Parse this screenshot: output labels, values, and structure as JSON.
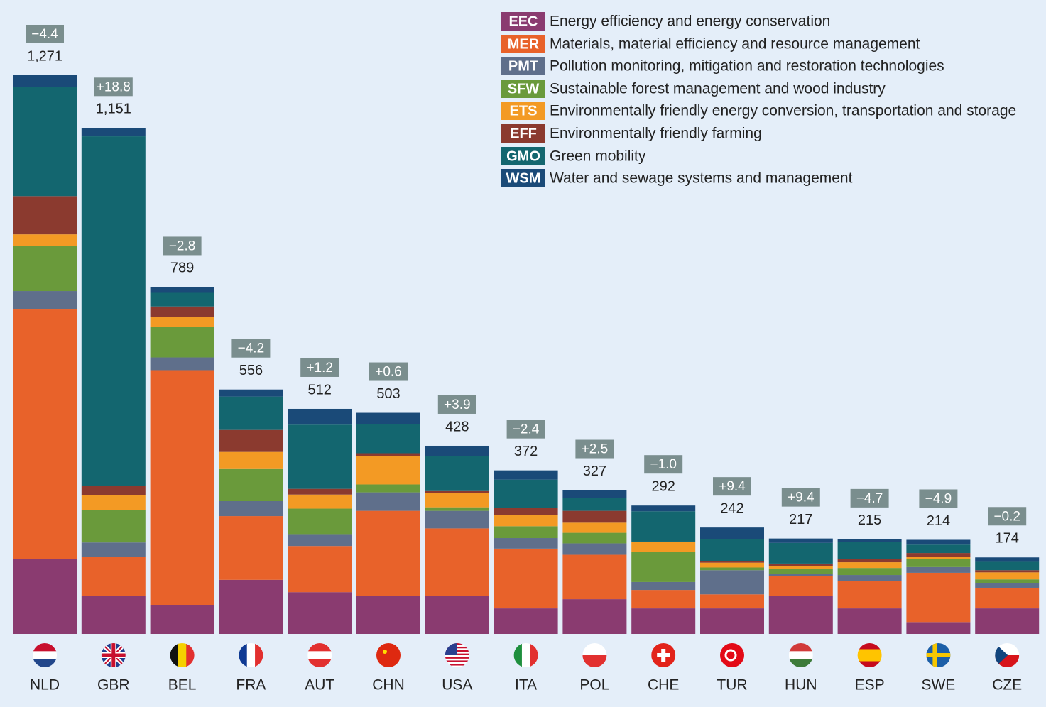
{
  "chart_data": {
    "type": "stacked_bar",
    "categories": [
      "NLD",
      "GBR",
      "BEL",
      "FRA",
      "AUT",
      "CHN",
      "USA",
      "ITA",
      "POL",
      "CHE",
      "TUR",
      "HUN",
      "ESP",
      "SWE",
      "CZE"
    ],
    "totals": [
      {
        "value": 1271,
        "label": "1,271"
      },
      {
        "value": 1151,
        "label": "1,151"
      },
      789,
      556,
      512,
      503,
      428,
      372,
      327,
      292,
      242,
      217,
      215,
      214,
      174
    ],
    "changes": [
      {
        "value": -4.4,
        "label": "−4.4"
      },
      {
        "value": 18.8,
        "label": "+18.8"
      },
      {
        "value": -2.8,
        "label": "−2.8"
      },
      {
        "value": -4.2,
        "label": "−4.2"
      },
      {
        "value": 1.2,
        "label": "+1.2"
      },
      {
        "value": 0.6,
        "label": "+0.6"
      },
      {
        "value": 3.9,
        "label": "+3.9"
      },
      {
        "value": -2.4,
        "label": "−2.4"
      },
      {
        "value": 2.5,
        "label": "+2.5"
      },
      {
        "value": -1.0,
        "label": "−1.0"
      },
      {
        "value": 9.4,
        "label": "+9.4"
      },
      {
        "value": 9.4,
        "label": "+9.4"
      },
      {
        "value": -4.7,
        "label": "−4.7"
      },
      {
        "value": -4.9,
        "label": "−4.9"
      },
      {
        "value": -0.2,
        "label": "−0.2"
      }
    ],
    "series": [
      {
        "code": "EEC",
        "name": "Energy efficiency and energy conservation",
        "color": "#8a3b70",
        "values": [
          170,
          87,
          66,
          123,
          95,
          87,
          87,
          58,
          79,
          58,
          58,
          87,
          58,
          27,
          58
        ]
      },
      {
        "code": "MER",
        "name": "Materials, material efficiency and resource management",
        "color": "#e8622a",
        "values": [
          568,
          89,
          534,
          145,
          105,
          193,
          153,
          136,
          101,
          42,
          32,
          44,
          63,
          112,
          47
        ]
      },
      {
        "code": "PMT",
        "name": "Pollution monitoring, mitigation and restoration technologies",
        "color": "#5f6f8b",
        "values": [
          42,
          32,
          29,
          34,
          27,
          42,
          40,
          24,
          26,
          18,
          55,
          6,
          13,
          13,
          11
        ]
      },
      {
        "code": "SFW",
        "name": "Sustainable forest management and wood industry",
        "color": "#6a9a3b",
        "values": [
          102,
          74,
          69,
          73,
          58,
          18,
          8,
          27,
          24,
          69,
          6,
          10,
          16,
          18,
          8
        ]
      },
      {
        "code": "ETS",
        "name": "Environmentally friendly energy conversion, transportation and storage",
        "color": "#f39a24",
        "values": [
          27,
          34,
          23,
          39,
          32,
          65,
          32,
          26,
          23,
          23,
          11,
          8,
          13,
          6,
          16
        ]
      },
      {
        "code": "EFF",
        "name": "Environmentally friendly farming",
        "color": "#8b3a2f",
        "values": [
          87,
          21,
          24,
          50,
          13,
          6,
          5,
          15,
          27,
          0,
          3,
          5,
          8,
          8,
          5
        ]
      },
      {
        "code": "GMO",
        "name": "Green mobility",
        "color": "#13666f",
        "values": [
          249,
          795,
          31,
          76,
          146,
          66,
          79,
          65,
          29,
          69,
          50,
          47,
          38,
          19,
          19
        ]
      },
      {
        "code": "WSM",
        "name": "Water and sewage systems and management",
        "color": "#1a4a78",
        "values": [
          26,
          19,
          13,
          16,
          36,
          26,
          24,
          21,
          18,
          13,
          27,
          10,
          6,
          11,
          10
        ]
      }
    ]
  }
}
